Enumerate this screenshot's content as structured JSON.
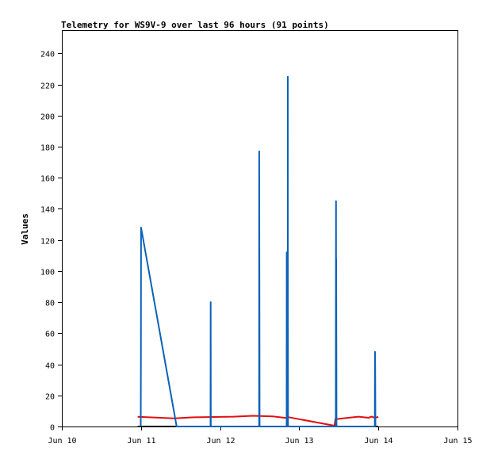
{
  "chart_data": {
    "type": "line",
    "title": "Telemetry for WS9V-9 over last 96 hours (91 points)",
    "xlabel": "",
    "ylabel": "Values",
    "xlim": [
      "2023-06-10T00:00",
      "2023-06-15T00:00"
    ],
    "ylim": [
      0,
      255
    ],
    "x_ticks": [
      "Jun 10",
      "Jun 11",
      "Jun 12",
      "Jun 13",
      "Jun 14",
      "Jun 15"
    ],
    "y_ticks": [
      0,
      20,
      40,
      60,
      80,
      100,
      120,
      140,
      160,
      180,
      200,
      220,
      240
    ],
    "grid": false,
    "legend": "none",
    "series": [
      {
        "color": "#0b62b8",
        "points": [
          [
            "2023-06-10T23:55",
            0
          ],
          [
            "2023-06-10T23:58",
            40
          ],
          [
            "2023-06-11T00:00",
            80
          ],
          [
            "2023-06-11T00:01",
            128
          ],
          [
            "2023-06-11T10:50",
            0
          ],
          [
            "2023-06-11T21:05",
            0
          ],
          [
            "2023-06-11T21:07",
            40
          ],
          [
            "2023-06-11T21:09",
            80
          ],
          [
            "2023-06-11T21:11",
            0
          ],
          [
            "2023-06-12T11:50",
            0
          ],
          [
            "2023-06-12T11:52",
            177
          ],
          [
            "2023-06-12T11:55",
            88
          ],
          [
            "2023-06-12T11:58",
            0
          ],
          [
            "2023-06-12T20:10",
            0
          ],
          [
            "2023-06-12T20:12",
            112
          ],
          [
            "2023-06-12T20:15",
            85
          ],
          [
            "2023-06-12T20:17",
            112
          ],
          [
            "2023-06-12T20:20",
            0
          ],
          [
            "2023-06-12T20:30",
            0
          ],
          [
            "2023-06-12T20:32",
            225
          ],
          [
            "2023-06-12T20:34",
            80
          ],
          [
            "2023-06-12T20:36",
            0
          ],
          [
            "2023-06-13T11:05",
            0
          ],
          [
            "2023-06-13T11:07",
            72
          ],
          [
            "2023-06-13T11:09",
            145
          ],
          [
            "2023-06-13T11:11",
            0
          ],
          [
            "2023-06-13T11:13",
            108
          ],
          [
            "2023-06-13T11:16",
            37
          ],
          [
            "2023-06-13T11:18",
            0
          ],
          [
            "2023-06-13T22:55",
            0
          ],
          [
            "2023-06-13T22:57",
            24
          ],
          [
            "2023-06-13T23:00",
            48
          ],
          [
            "2023-06-13T23:03",
            37
          ],
          [
            "2023-06-13T23:06",
            0
          ]
        ]
      },
      {
        "color": "#e01010",
        "points": [
          [
            "2023-06-10T23:00",
            6.2
          ],
          [
            "2023-06-11T04:00",
            5.8
          ],
          [
            "2023-06-11T10:00",
            5.2
          ],
          [
            "2023-06-11T16:00",
            5.9
          ],
          [
            "2023-06-11T22:00",
            6.1
          ],
          [
            "2023-06-12T04:00",
            6.3
          ],
          [
            "2023-06-12T10:00",
            6.9
          ],
          [
            "2023-06-12T16:00",
            6.5
          ],
          [
            "2023-06-12T20:00",
            5.5
          ],
          [
            "2023-06-12T20:20",
            6.6
          ],
          [
            "2023-06-12T20:40",
            6.0
          ],
          [
            "2023-06-13T10:40",
            0.5
          ],
          [
            "2023-06-13T11:00",
            5.0
          ],
          [
            "2023-06-13T11:30",
            4.8
          ],
          [
            "2023-06-13T14:00",
            5.4
          ],
          [
            "2023-06-13T18:00",
            6.3
          ],
          [
            "2023-06-13T21:00",
            5.6
          ],
          [
            "2023-06-13T22:00",
            6.4
          ],
          [
            "2023-06-13T23:00",
            5.5
          ],
          [
            "2023-06-14T00:00",
            6.2
          ]
        ]
      },
      {
        "color": "#000000",
        "points": [
          [
            "2023-06-10T23:00",
            0
          ],
          [
            "2023-06-14T00:00",
            0
          ]
        ]
      }
    ]
  }
}
